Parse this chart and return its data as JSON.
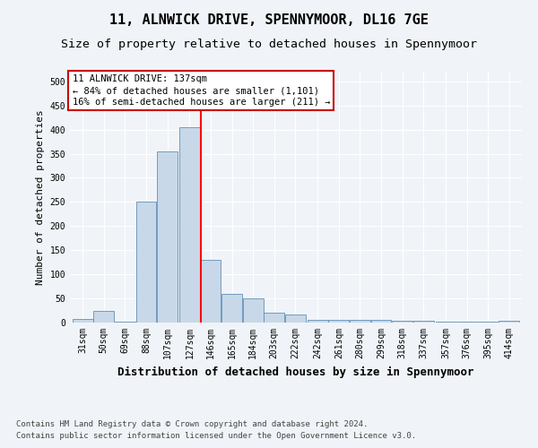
{
  "title": "11, ALNWICK DRIVE, SPENNYMOOR, DL16 7GE",
  "subtitle": "Size of property relative to detached houses in Spennymoor",
  "xlabel": "Distribution of detached houses by size in Spennymoor",
  "ylabel": "Number of detached properties",
  "footnote1": "Contains HM Land Registry data © Crown copyright and database right 2024.",
  "footnote2": "Contains public sector information licensed under the Open Government Licence v3.0.",
  "annotation_line1": "11 ALNWICK DRIVE: 137sqm",
  "annotation_line2": "← 84% of detached houses are smaller (1,101)",
  "annotation_line3": "16% of semi-detached houses are larger (211) →",
  "bar_color": "#c8d8e8",
  "bar_edge_color": "#6090b8",
  "redline_x": 137,
  "categories": [
    "31sqm",
    "50sqm",
    "69sqm",
    "88sqm",
    "107sqm",
    "127sqm",
    "146sqm",
    "165sqm",
    "184sqm",
    "203sqm",
    "222sqm",
    "242sqm",
    "261sqm",
    "280sqm",
    "299sqm",
    "318sqm",
    "337sqm",
    "357sqm",
    "376sqm",
    "395sqm",
    "414sqm"
  ],
  "bin_edges": [
    31,
    50,
    69,
    88,
    107,
    127,
    146,
    165,
    184,
    203,
    222,
    242,
    261,
    280,
    299,
    318,
    337,
    357,
    376,
    395,
    414
  ],
  "values": [
    7,
    25,
    1,
    250,
    355,
    405,
    130,
    60,
    50,
    20,
    16,
    6,
    5,
    5,
    5,
    4,
    4,
    2,
    2,
    1,
    4
  ],
  "ylim": [
    0,
    520
  ],
  "yticks": [
    0,
    50,
    100,
    150,
    200,
    250,
    300,
    350,
    400,
    450,
    500
  ],
  "background_color": "#f0f4f8",
  "grid_color": "#ffffff",
  "title_fontsize": 11,
  "subtitle_fontsize": 9.5,
  "xlabel_fontsize": 9,
  "ylabel_fontsize": 8,
  "tick_fontsize": 7,
  "annotation_fontsize": 7.5,
  "footnote_fontsize": 6.5
}
